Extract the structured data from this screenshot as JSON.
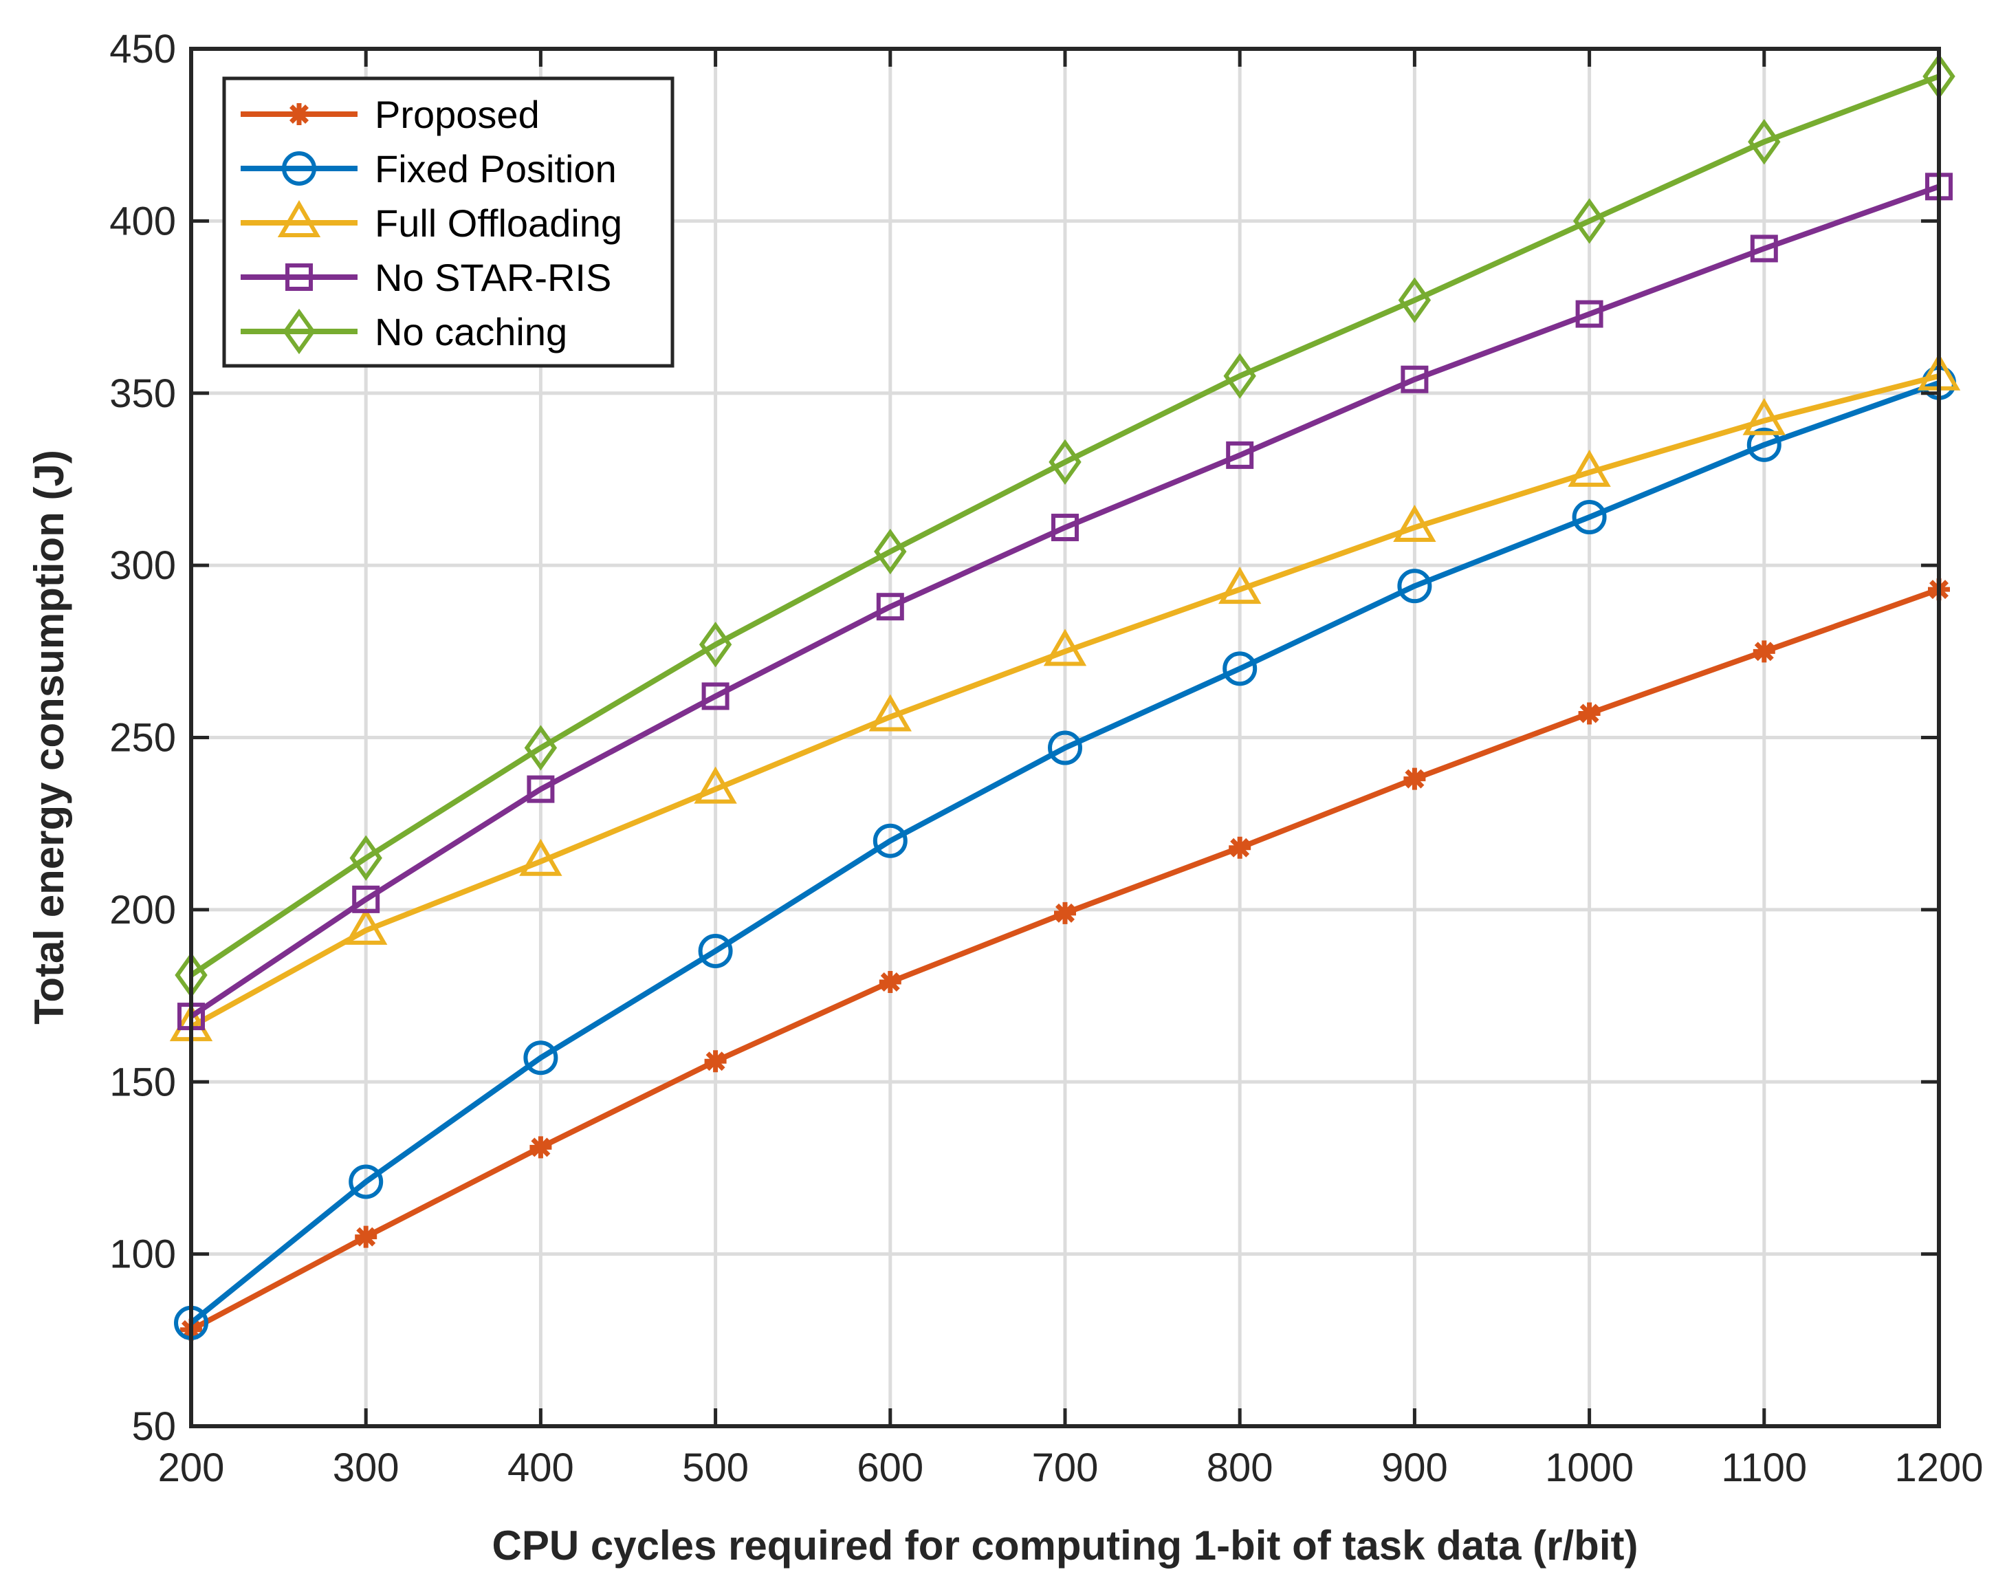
{
  "chart_data": {
    "type": "line",
    "title": "",
    "xlabel": "CPU cycles required for computing 1-bit of task data (r/bit)",
    "ylabel": "Total energy consumption (J)",
    "xlim": [
      200,
      1200
    ],
    "ylim": [
      50,
      450
    ],
    "x": [
      200,
      300,
      400,
      500,
      600,
      700,
      800,
      900,
      1000,
      1100,
      1200
    ],
    "xticks": [
      "200",
      "300",
      "400",
      "500",
      "600",
      "700",
      "800",
      "900",
      "1000",
      "1100",
      "1200"
    ],
    "yticks": [
      "50",
      "100",
      "150",
      "200",
      "250",
      "300",
      "350",
      "400",
      "450"
    ],
    "grid": true,
    "legend_position": "top-left",
    "series": [
      {
        "name": "Proposed",
        "marker": "asterisk",
        "color": "#D95319",
        "values": [
          78,
          105,
          131,
          156,
          179,
          199,
          218,
          238,
          257,
          275,
          293
        ]
      },
      {
        "name": "Fixed Position",
        "marker": "circle",
        "color": "#0072BD",
        "values": [
          80,
          121,
          157,
          188,
          220,
          247,
          270,
          294,
          314,
          335,
          353
        ]
      },
      {
        "name": "Full Offloading",
        "marker": "triangle",
        "color": "#EDB120",
        "values": [
          166,
          194,
          214,
          235,
          256,
          275,
          293,
          311,
          327,
          342,
          355
        ]
      },
      {
        "name": "No STAR-RIS",
        "marker": "square",
        "color": "#7E2F8E",
        "values": [
          169,
          203,
          235,
          262,
          288,
          311,
          332,
          354,
          373,
          392,
          410
        ]
      },
      {
        "name": "No caching",
        "marker": "diamond",
        "color": "#77AC30",
        "values": [
          181,
          215,
          247,
          277,
          304,
          330,
          355,
          377,
          400,
          423,
          442
        ]
      }
    ]
  }
}
